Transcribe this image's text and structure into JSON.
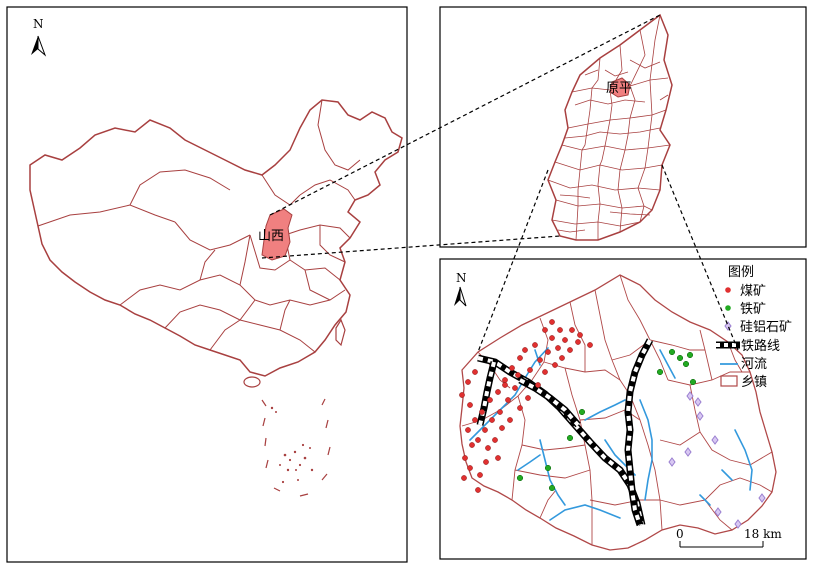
{
  "panels": {
    "china": {
      "north_label": "N",
      "province_label": "山西"
    },
    "shanxi": {
      "county_label": "原平"
    },
    "yuanping": {
      "north_label": "N"
    }
  },
  "legend": {
    "title": "图例",
    "items": [
      {
        "key": "coal",
        "label": "煤矿",
        "symbol": "red-dot",
        "color": "#e03030"
      },
      {
        "key": "iron",
        "label": "铁矿",
        "symbol": "green-dot",
        "color": "#22aa22"
      },
      {
        "key": "bauxite",
        "label": "硅铝石矿",
        "symbol": "lilac-diamond",
        "color": "#b9a0e6"
      },
      {
        "key": "railway",
        "label": "铁路线",
        "symbol": "railway-line",
        "color": "#000000"
      },
      {
        "key": "river",
        "label": "河流",
        "symbol": "blue-line",
        "color": "#3399dd"
      },
      {
        "key": "township",
        "label": "乡镇",
        "symbol": "boundary-box",
        "color": "#b04848"
      }
    ]
  },
  "scalebar": {
    "start": "0",
    "end": "18 km"
  },
  "colors": {
    "boundary": "#a84040",
    "highlight": "#f08080",
    "frame": "#000000"
  }
}
